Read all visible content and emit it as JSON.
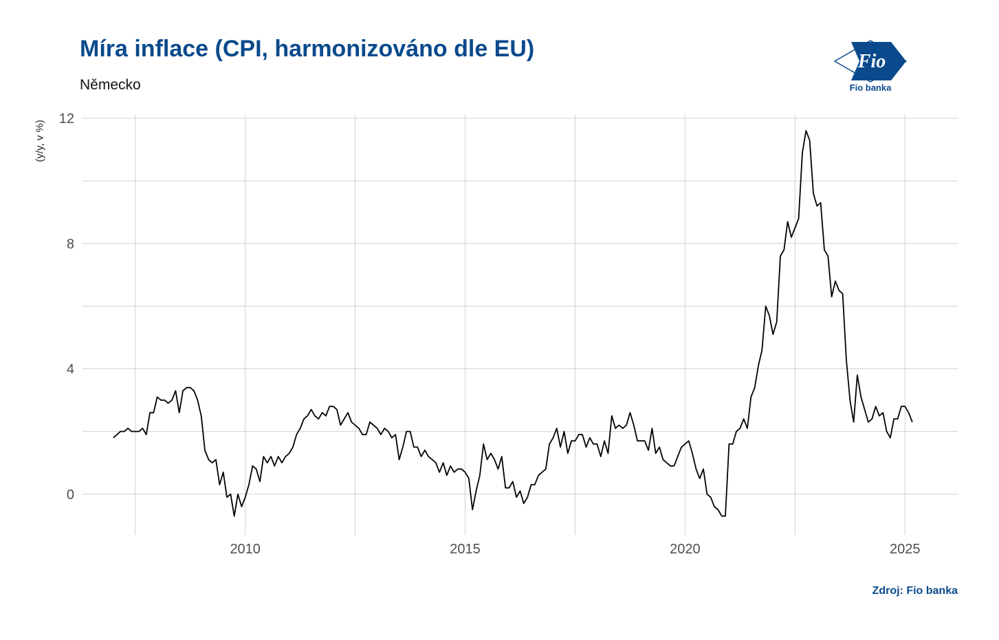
{
  "title": "Míra inflace (CPI, harmonizováno dle EU)",
  "subtitle": "Německo",
  "source": "Zdroj: Fio banka",
  "logo": {
    "mark": "Fio",
    "caption": "Fio banka",
    "icon": "fio-banka-logo-icon"
  },
  "colors": {
    "title": "#0a4a8c",
    "line": "#000000",
    "grid": "#d0d0d0"
  },
  "chart_data": {
    "type": "line",
    "title": "Míra inflace (CPI, harmonizováno dle EU)",
    "subtitle": "Německo",
    "xlabel": "",
    "ylabel": "(y/y, v %)",
    "xlim": [
      2006.3,
      2026.2
    ],
    "ylim": [
      -1.3,
      12.0
    ],
    "x_ticks": [
      2010,
      2015,
      2020,
      2025
    ],
    "x_tick_labels": [
      "2010",
      "2015",
      "2020",
      "2025"
    ],
    "y_ticks": [
      0,
      4,
      8,
      12
    ],
    "y_tick_labels": [
      "0",
      "4",
      "8",
      "12"
    ],
    "grid": true,
    "legend": "none",
    "series": [
      {
        "x_start": 2007.0,
        "x_step_months": 1,
        "values": [
          1.8,
          1.9,
          2.0,
          2.0,
          2.1,
          2.0,
          2.0,
          2.0,
          2.1,
          1.9,
          2.6,
          2.6,
          3.1,
          3.0,
          3.0,
          2.9,
          3.0,
          3.3,
          2.6,
          3.3,
          3.4,
          3.4,
          3.3,
          3.0,
          2.5,
          1.4,
          1.1,
          1.0,
          1.1,
          0.3,
          0.7,
          -0.1,
          0.0,
          -0.7,
          0.0,
          -0.4,
          -0.1,
          0.3,
          0.9,
          0.8,
          0.4,
          1.2,
          1.0,
          1.2,
          0.9,
          1.2,
          1.0,
          1.2,
          1.3,
          1.5,
          1.9,
          2.1,
          2.4,
          2.5,
          2.7,
          2.5,
          2.4,
          2.6,
          2.5,
          2.8,
          2.8,
          2.7,
          2.2,
          2.4,
          2.6,
          2.3,
          2.2,
          2.1,
          1.9,
          1.9,
          2.3,
          2.2,
          2.1,
          1.9,
          2.1,
          2.0,
          1.8,
          1.9,
          1.1,
          1.5,
          2.0,
          2.0,
          1.5,
          1.5,
          1.2,
          1.4,
          1.2,
          1.1,
          1.0,
          0.7,
          1.0,
          0.6,
          0.9,
          0.7,
          0.8,
          0.8,
          0.7,
          0.5,
          -0.5,
          0.1,
          0.6,
          1.6,
          1.1,
          1.3,
          1.1,
          0.8,
          1.2,
          0.2,
          0.2,
          0.4,
          -0.1,
          0.1,
          -0.3,
          -0.1,
          0.3,
          0.3,
          0.6,
          0.7,
          0.8,
          1.6,
          1.8,
          2.1,
          1.5,
          2.0,
          1.3,
          1.7,
          1.7,
          1.9,
          1.9,
          1.5,
          1.8,
          1.6,
          1.6,
          1.2,
          1.7,
          1.3,
          2.5,
          2.1,
          2.2,
          2.1,
          2.2,
          2.6,
          2.2,
          1.7,
          1.7,
          1.7,
          1.4,
          2.1,
          1.3,
          1.5,
          1.1,
          1.0,
          0.9,
          0.9,
          1.2,
          1.5,
          1.6,
          1.7,
          1.3,
          0.8,
          0.5,
          0.8,
          0.0,
          -0.1,
          -0.4,
          -0.5,
          -0.7,
          -0.7,
          1.6,
          1.6,
          2.0,
          2.1,
          2.4,
          2.1,
          3.1,
          3.4,
          4.1,
          4.6,
          6.0,
          5.7,
          5.1,
          5.5,
          7.6,
          7.8,
          8.7,
          8.2,
          8.5,
          8.8,
          10.9,
          11.6,
          11.3,
          9.6,
          9.2,
          9.3,
          7.8,
          7.6,
          6.3,
          6.8,
          6.5,
          6.4,
          4.3,
          3.0,
          2.3,
          3.8,
          3.1,
          2.7,
          2.3,
          2.4,
          2.8,
          2.5,
          2.6,
          2.0,
          1.8,
          2.4,
          2.4,
          2.8,
          2.8,
          2.6,
          2.3
        ]
      }
    ]
  }
}
